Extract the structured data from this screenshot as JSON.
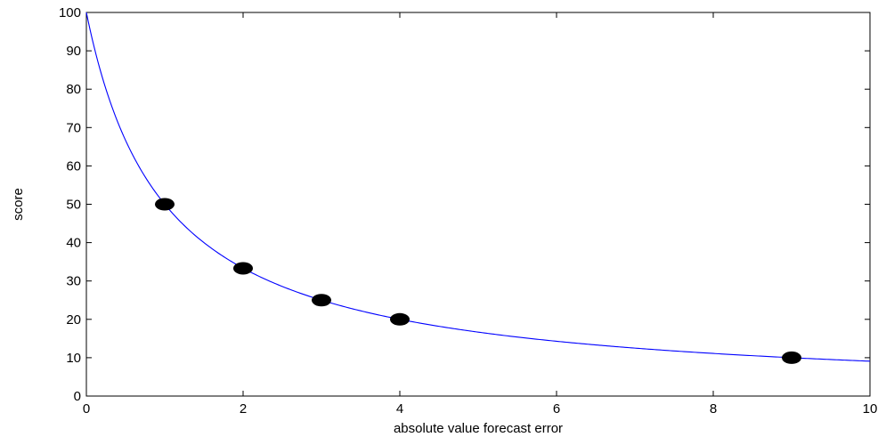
{
  "chart_data": {
    "type": "scatter",
    "title": "",
    "xlabel": "absolute value forecast error",
    "ylabel": "score",
    "xlim": [
      0,
      10
    ],
    "ylim": [
      0,
      100
    ],
    "x_ticks": [
      0,
      2,
      4,
      6,
      8,
      10
    ],
    "y_ticks": [
      0,
      10,
      20,
      30,
      40,
      50,
      60,
      70,
      80,
      90,
      100
    ],
    "grid": false,
    "legend": "none",
    "curve": {
      "formula": "100 / (1 + x)",
      "color": "#0000ff",
      "x_range": [
        0,
        10
      ]
    },
    "points": {
      "color": "#000000",
      "x": [
        1,
        2,
        3,
        4,
        9
      ],
      "y": [
        50,
        33.3,
        25,
        20,
        10
      ]
    }
  }
}
